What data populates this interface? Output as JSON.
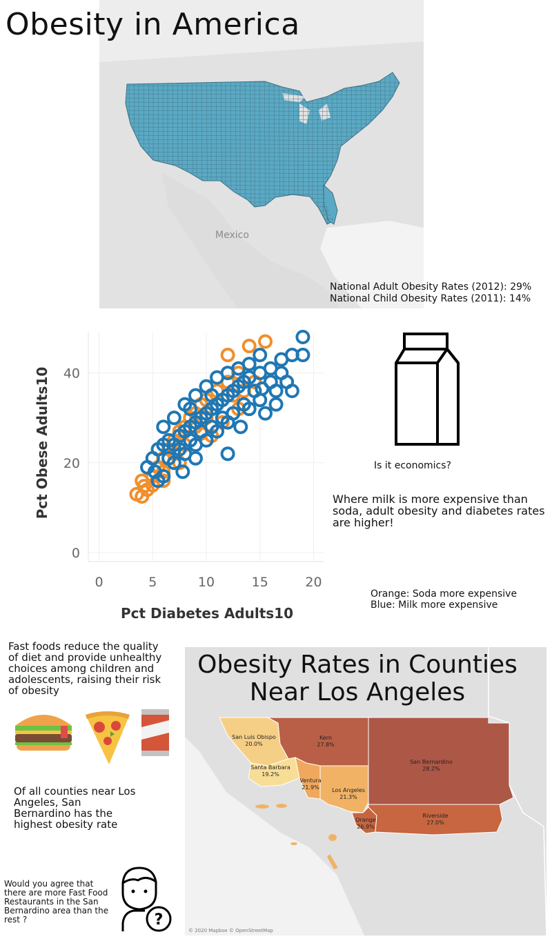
{
  "page": {
    "title": "Obesity in America"
  },
  "us_map": {
    "place_label": "Mexico",
    "notes": [
      "National Adult Obesity Rates (2012): 29%",
      "National Child Obesity Rates (2011): 14%"
    ],
    "fill_color": "#5ba9c4",
    "background_color": "#ececec"
  },
  "chart_data": {
    "type": "scatter",
    "xlabel": "Pct Diabetes Adults10",
    "ylabel": "Pct Obese Adults10",
    "xlim": [
      -1,
      21
    ],
    "ylim": [
      -2,
      49
    ],
    "xticks": [
      "0",
      "5",
      "10",
      "15",
      "20"
    ],
    "yticks": [
      "0",
      "20",
      "40"
    ],
    "grid": true,
    "series": [
      {
        "color": "#f28e2b",
        "points": [
          [
            3.5,
            13
          ],
          [
            4,
            12.5
          ],
          [
            4.5,
            14
          ],
          [
            4,
            16
          ],
          [
            5,
            17
          ],
          [
            5.5,
            19
          ],
          [
            6,
            21
          ],
          [
            5,
            15
          ],
          [
            6.5,
            23
          ],
          [
            7,
            25
          ],
          [
            7.5,
            27
          ],
          [
            8,
            28
          ],
          [
            8.5,
            30
          ],
          [
            9,
            31
          ],
          [
            9.5,
            33
          ],
          [
            10,
            34
          ],
          [
            11,
            36
          ],
          [
            12,
            38
          ],
          [
            12,
            44
          ],
          [
            14,
            46
          ],
          [
            15.5,
            47
          ],
          [
            11,
            33
          ],
          [
            12.5,
            35
          ],
          [
            13.5,
            36
          ],
          [
            9,
            28
          ],
          [
            10,
            30
          ],
          [
            6,
            18
          ],
          [
            7,
            22
          ],
          [
            8,
            24
          ],
          [
            14.5,
            38
          ],
          [
            13,
            32
          ],
          [
            10.5,
            26
          ],
          [
            6,
            16
          ],
          [
            4.2,
            14.8
          ],
          [
            7.5,
            20
          ],
          [
            11.5,
            29
          ],
          [
            9.5,
            26.5
          ],
          [
            13,
            40
          ]
        ]
      },
      {
        "color": "#1f77b4",
        "points": [
          [
            4.5,
            19
          ],
          [
            5,
            21
          ],
          [
            5.5,
            23
          ],
          [
            6,
            24
          ],
          [
            6.5,
            25
          ],
          [
            7,
            24
          ],
          [
            7.5,
            26
          ],
          [
            8,
            27
          ],
          [
            8.5,
            28
          ],
          [
            9,
            29
          ],
          [
            9.5,
            30
          ],
          [
            10,
            31
          ],
          [
            10.5,
            32
          ],
          [
            11,
            33
          ],
          [
            11.5,
            34
          ],
          [
            12,
            35
          ],
          [
            12.5,
            36
          ],
          [
            13,
            37
          ],
          [
            13.5,
            38
          ],
          [
            14,
            39
          ],
          [
            15,
            40
          ],
          [
            16,
            41
          ],
          [
            17,
            40
          ],
          [
            18,
            44
          ],
          [
            19,
            48
          ],
          [
            19,
            44
          ],
          [
            17.5,
            38
          ],
          [
            16.5,
            36
          ],
          [
            15,
            34
          ],
          [
            14,
            32
          ],
          [
            12,
            29
          ],
          [
            11,
            27
          ],
          [
            10,
            25
          ],
          [
            9,
            24
          ],
          [
            8,
            22
          ],
          [
            7,
            20
          ],
          [
            6,
            17
          ],
          [
            5.5,
            16
          ],
          [
            12,
            22
          ],
          [
            9,
            21
          ],
          [
            15.5,
            31
          ],
          [
            13.5,
            33
          ],
          [
            10.5,
            28
          ],
          [
            8.5,
            25
          ],
          [
            11.5,
            30
          ],
          [
            14.5,
            36
          ],
          [
            16,
            38
          ],
          [
            7.5,
            23
          ],
          [
            6.5,
            21
          ],
          [
            9.5,
            27
          ],
          [
            12.5,
            31
          ],
          [
            10,
            37
          ],
          [
            8,
            33
          ],
          [
            11,
            39
          ],
          [
            13,
            41
          ],
          [
            15,
            44
          ],
          [
            17,
            43
          ],
          [
            14,
            42
          ],
          [
            12,
            40
          ],
          [
            16.5,
            33
          ],
          [
            18,
            36
          ],
          [
            10.5,
            35
          ],
          [
            9,
            35
          ],
          [
            7,
            30
          ],
          [
            8.5,
            32
          ],
          [
            6,
            28
          ],
          [
            7.8,
            18
          ],
          [
            5.2,
            18
          ],
          [
            13.2,
            28
          ],
          [
            15.2,
            36.5
          ]
        ]
      }
    ]
  },
  "milk": {
    "question": "Is it economics?",
    "statement": "Where milk is more expensive than soda, adult obesity and diabetes rates are higher!",
    "legend": [
      "Orange: Soda more expensive",
      "Blue: Milk more expensive"
    ]
  },
  "fast_food": {
    "text": "Fast foods reduce the quality of diet and provide unhealthy choices among children and adolescents, raising their risk of obesity",
    "counties_note": "Of all counties near Los Angeles, San Bernardino has the highest obesity rate",
    "question": "Would you agree that there are more Fast Food Restaurants in the San Bernardino area than the rest ?"
  },
  "la_map": {
    "title": "Obesity Rates in Counties Near Los Angeles",
    "attribution": "© 2020 Mapbox © OpenStreetMap",
    "counties": [
      {
        "name": "San Luis Obispo",
        "rate": "20.0%",
        "color": "#f6cf86"
      },
      {
        "name": "Kern",
        "rate": "27.8%",
        "color": "#b95f47"
      },
      {
        "name": "Santa Barbara",
        "rate": "19.2%",
        "color": "#f8dd96"
      },
      {
        "name": "Ventura",
        "rate": "21.9%",
        "color": "#efa85d"
      },
      {
        "name": "Los Angeles",
        "rate": "21.3%",
        "color": "#f1b266"
      },
      {
        "name": "San Bernardino",
        "rate": "28.2%",
        "color": "#ad5746"
      },
      {
        "name": "Orange",
        "rate": "26.9%",
        "color": "#c5653f"
      },
      {
        "name": "Riverside",
        "rate": "27.0%",
        "color": "#c76640"
      }
    ]
  }
}
